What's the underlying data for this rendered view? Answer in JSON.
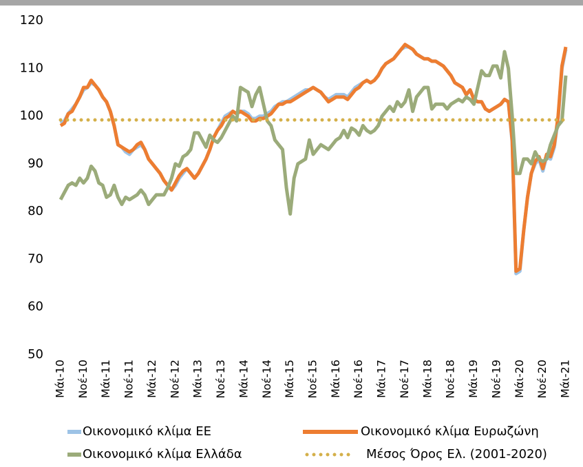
{
  "chart_data": {
    "type": "line",
    "categories": [
      "Μάι-10",
      null,
      null,
      null,
      null,
      null,
      "Νοέ-10",
      null,
      null,
      null,
      null,
      null,
      "Μάι-11",
      null,
      null,
      null,
      null,
      null,
      "Νοέ-11",
      null,
      null,
      null,
      null,
      null,
      "Μάι-12",
      null,
      null,
      null,
      null,
      null,
      "Νοέ-12",
      null,
      null,
      null,
      null,
      null,
      "Μάι-13",
      null,
      null,
      null,
      null,
      null,
      "Νοέ-13",
      null,
      null,
      null,
      null,
      null,
      "Μάι-14",
      null,
      null,
      null,
      null,
      null,
      "Νοέ-14",
      null,
      null,
      null,
      null,
      null,
      "Μάι-15",
      null,
      null,
      null,
      null,
      null,
      "Νοέ-15",
      null,
      null,
      null,
      null,
      null,
      "Μάι-16",
      null,
      null,
      null,
      null,
      null,
      "Νοέ-16",
      null,
      null,
      null,
      null,
      null,
      "Μάι-17",
      null,
      null,
      null,
      null,
      null,
      "Νοέ-17",
      null,
      null,
      null,
      null,
      null,
      "Μάι-18",
      null,
      null,
      null,
      null,
      null,
      "Νοέ-18",
      null,
      null,
      null,
      null,
      null,
      "Μάι-19",
      null,
      null,
      null,
      null,
      null,
      "Νοέ-19",
      null,
      null,
      null,
      null,
      null,
      "Μάι-20",
      null,
      null,
      null,
      null,
      null,
      "Νοέ-20",
      null,
      null,
      null,
      null,
      null,
      "Μάι-21"
    ],
    "series": [
      {
        "name": "Οικονομικό κλίμα ΕΕ",
        "color": "#9dc3e6",
        "values": [
          98.5,
          99,
          100.5,
          101.5,
          102.5,
          104,
          105.5,
          106,
          107,
          106.5,
          105.5,
          104,
          103,
          101,
          98,
          94,
          93.5,
          92.5,
          92,
          93,
          93.5,
          94,
          93,
          91,
          90,
          89,
          88,
          86.5,
          85.5,
          84.5,
          85.5,
          87,
          88,
          89,
          88,
          87,
          88,
          89.5,
          91,
          93,
          95.5,
          97,
          98.5,
          100,
          100.5,
          101,
          100.5,
          101,
          101,
          100.5,
          99.5,
          99.5,
          100,
          100,
          100.5,
          101,
          102,
          102.5,
          103,
          103,
          103.5,
          104,
          104.5,
          105,
          105.5,
          105.5,
          106,
          105.5,
          105,
          104,
          103.5,
          104,
          104.5,
          104.5,
          104.5,
          104,
          105,
          106,
          106.5,
          107,
          107.5,
          107,
          107.5,
          108.5,
          110,
          111,
          111.5,
          112,
          113,
          114,
          114.5,
          114.5,
          114,
          113,
          112.5,
          112,
          112,
          111.5,
          111.5,
          111,
          110.5,
          109.5,
          108.5,
          107,
          106.5,
          106,
          104.5,
          105.5,
          103.5,
          103,
          103,
          101.5,
          101,
          101.5,
          102,
          102.5,
          103.5,
          103,
          94.5,
          67,
          67.5,
          76,
          83,
          88,
          90,
          91,
          88.5,
          91.5,
          91,
          93.5,
          99.5,
          110,
          114
        ]
      },
      {
        "name": "Οικονομικό κλίμα Ευρωζώνη",
        "color": "#ed7d31",
        "values": [
          98,
          98.5,
          100.5,
          101,
          102.5,
          104,
          106,
          106,
          107.5,
          106.5,
          105.5,
          104,
          103,
          101,
          98,
          94,
          93.5,
          93,
          92.5,
          93,
          94,
          94.5,
          93,
          91,
          90,
          89,
          88,
          86.5,
          85.5,
          84.5,
          86,
          87.5,
          88.5,
          89,
          88,
          87,
          88,
          89.5,
          91,
          93,
          95.5,
          97,
          98,
          99.5,
          100,
          101,
          100.5,
          101,
          100.5,
          100,
          99,
          99,
          99.5,
          99.5,
          100,
          100.5,
          101.5,
          102.5,
          102.5,
          103,
          103,
          103.5,
          104,
          104.5,
          105,
          105.5,
          106,
          105.5,
          105,
          104,
          103,
          103.5,
          104,
          104,
          104,
          103.5,
          104.5,
          105.5,
          106,
          107,
          107.5,
          107,
          107.5,
          108.5,
          110,
          111,
          111.5,
          112,
          113,
          114,
          115,
          114.5,
          114,
          113,
          112.5,
          112,
          112,
          111.5,
          111.5,
          111,
          110.5,
          109.5,
          108.5,
          107,
          106.5,
          106,
          104.5,
          105.5,
          103.5,
          103,
          103,
          101.5,
          101,
          101.5,
          102,
          102.5,
          103.5,
          103,
          95,
          67.5,
          68,
          76,
          83,
          88,
          90.5,
          91.5,
          89,
          92,
          91.5,
          94,
          100,
          110.5,
          114.5
        ]
      },
      {
        "name": "Οικονομικό κλίμα Ελλάδα",
        "color": "#9bab7a",
        "values": [
          82.5,
          84,
          85.5,
          86,
          85.5,
          87,
          86,
          87,
          89.5,
          88.5,
          86,
          85.5,
          83,
          83.5,
          85.5,
          83,
          81.5,
          83,
          82.5,
          83,
          83.5,
          84.5,
          83.5,
          81.5,
          82.5,
          83.5,
          83.5,
          83.5,
          85,
          87,
          90,
          89.5,
          91.5,
          92,
          93,
          96.5,
          96.5,
          95,
          93.5,
          96,
          95,
          94.5,
          95.5,
          97,
          98.5,
          100,
          99,
          106,
          105.5,
          105,
          102,
          104.5,
          106,
          102.5,
          99,
          98,
          95,
          94,
          93,
          85,
          79.5,
          87,
          90,
          90.5,
          91,
          95,
          92,
          93,
          94,
          93.5,
          93,
          94,
          95,
          95.5,
          97,
          95.5,
          97.5,
          97,
          96,
          98,
          97,
          96.5,
          97,
          98,
          100,
          101,
          102,
          101,
          103,
          102,
          103,
          105.5,
          101,
          104,
          105,
          106,
          106,
          101.5,
          102.5,
          102.5,
          102.5,
          101.5,
          102.5,
          103,
          103.5,
          103,
          104,
          103.5,
          102.5,
          106,
          109.5,
          108.5,
          108.5,
          110.5,
          110.5,
          108,
          113.5,
          110,
          100,
          88,
          88,
          91,
          91,
          90,
          92.5,
          91,
          90.5,
          91,
          94,
          96,
          98,
          99,
          108.5
        ]
      }
    ],
    "reference_lines": [
      {
        "name": "Μέσος Όρος Ελ. (2001-2020)",
        "color": "#d4b04a",
        "value": 99.2
      }
    ],
    "ylim": [
      50,
      120
    ],
    "yticks": [
      50,
      60,
      70,
      80,
      90,
      100,
      110,
      120
    ],
    "grid": false
  }
}
